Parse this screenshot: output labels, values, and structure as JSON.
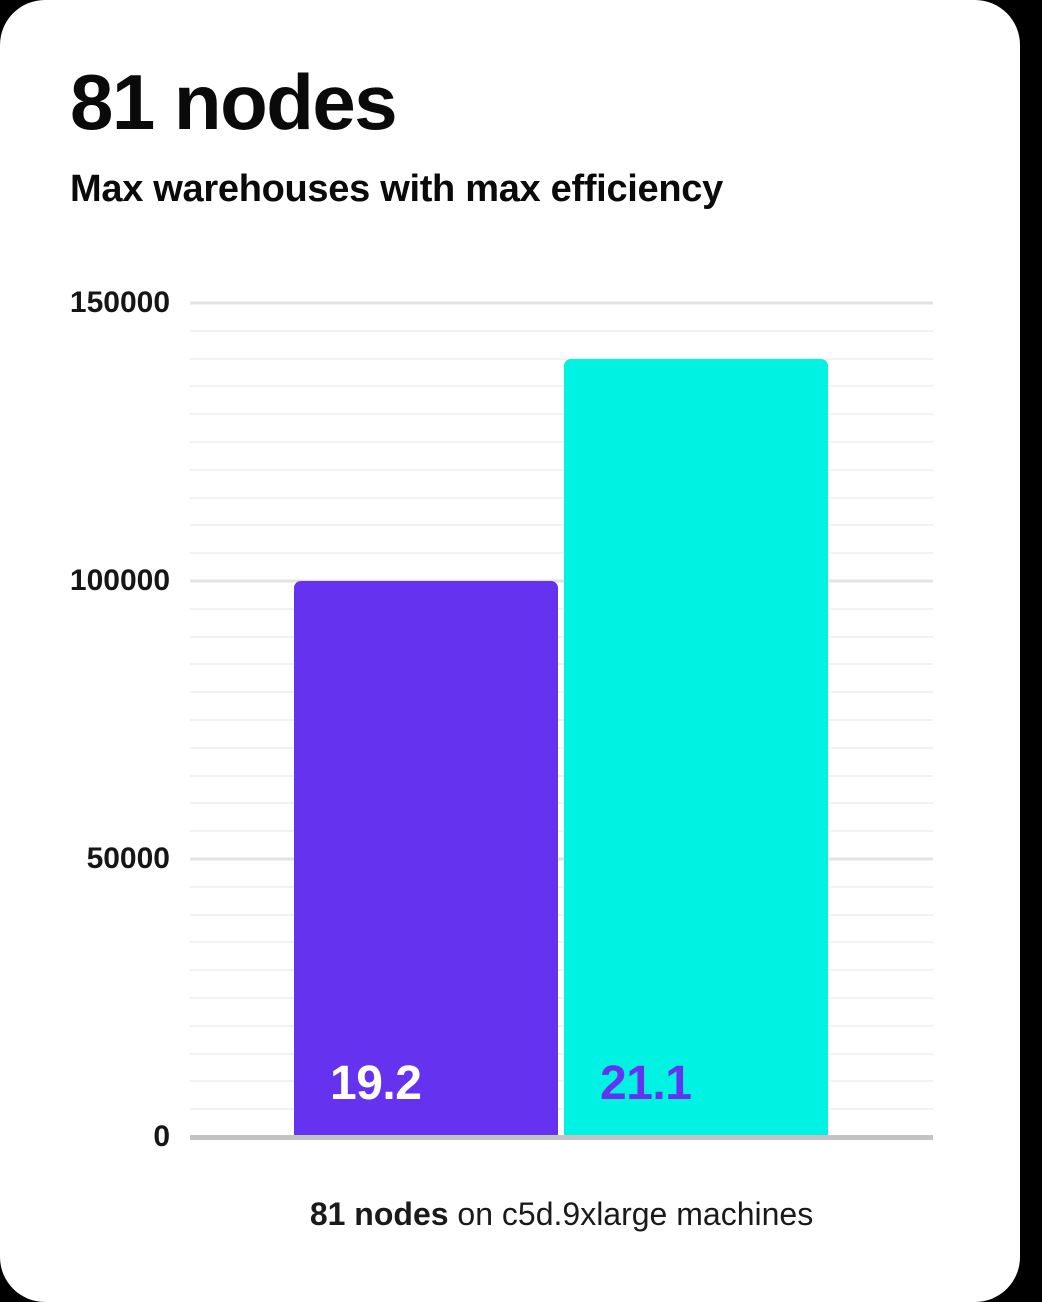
{
  "header": {
    "title": "81 nodes",
    "subtitle": "Max warehouses with max efficiency"
  },
  "caption": {
    "bold": "81 nodes",
    "rest": " on c5d.9xlarge machines"
  },
  "colors": {
    "background": "#000000",
    "card": "#ffffff",
    "grid_minor": "#f2f2f2",
    "grid_major": "#e3e3e3",
    "axis_line": "#c4c4c4",
    "text": "#0a0a0a",
    "bars": [
      "#6533f0",
      "#00f2e2"
    ],
    "bar_label_colors": [
      "#ffffff",
      "#6533f0"
    ]
  },
  "chart_data": {
    "type": "bar",
    "categories": [
      "19.2",
      "21.1"
    ],
    "values": [
      100000,
      140000
    ],
    "bar_labels": [
      "19.2",
      "21.1"
    ],
    "title": "81 nodes",
    "subtitle": "Max warehouses with max efficiency",
    "xlabel": "81 nodes on c5d.9xlarge machines",
    "ylabel": "",
    "ylim": [
      0,
      150000
    ],
    "yticks": [
      0,
      50000,
      100000,
      150000
    ],
    "ytick_labels": [
      "0",
      "50000",
      "100000",
      "150000"
    ],
    "minor_grid_interval": 5000,
    "grid": "horizontal-only",
    "legend": "none"
  }
}
